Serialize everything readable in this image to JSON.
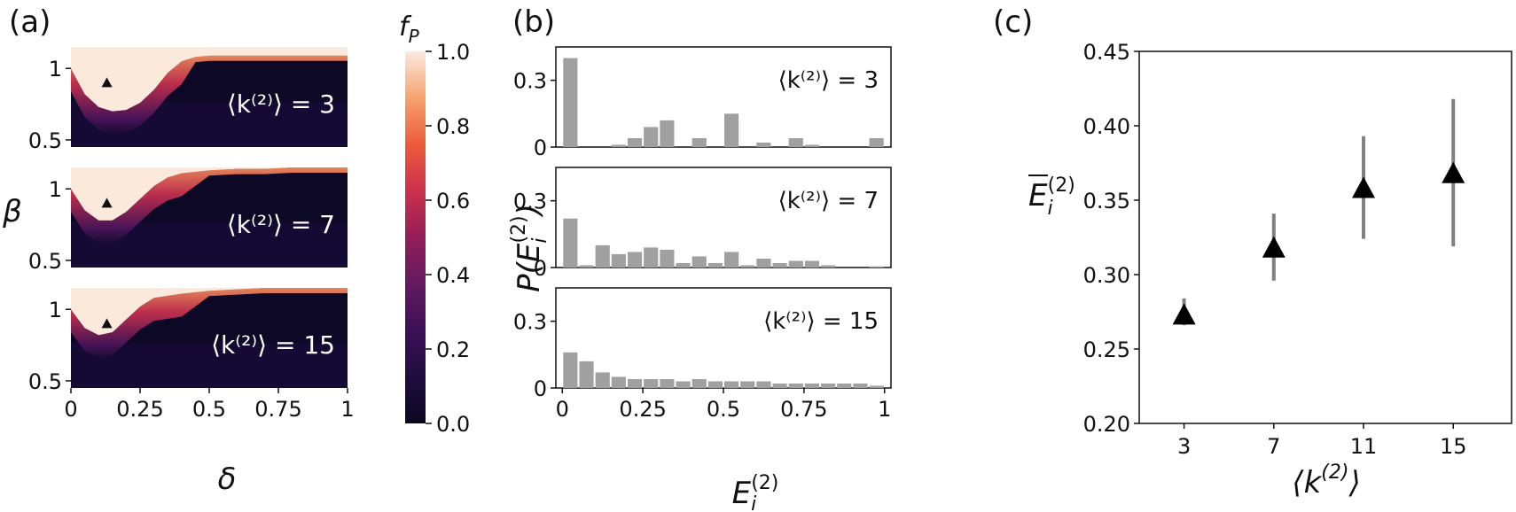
{
  "panels": {
    "a": "(a)",
    "b": "(b)",
    "c": "(c)"
  },
  "chart_data": [
    {
      "type": "heatmap",
      "panel": "(a)",
      "xlabel": "δ",
      "ylabel": "β",
      "xticks": [
        "0",
        "0.25",
        "0.5",
        "0.75",
        "1"
      ],
      "yticks": [
        "0.5",
        "1"
      ],
      "xlim": [
        0,
        1
      ],
      "ylim": [
        0.45,
        1.15
      ],
      "colorbar": {
        "label": "f_P",
        "title_main": "f",
        "title_sub": "P",
        "range": [
          0,
          1
        ],
        "ticks": [
          "0.0",
          "0.2",
          "0.4",
          "0.6",
          "0.8",
          "1.0"
        ]
      },
      "marker": {
        "delta": 0.13,
        "beta": 0.9
      },
      "subplots": [
        {
          "label": "⟨k⁽²⁾⟩ = 3",
          "boundary": [
            [
              0,
              1.0
            ],
            [
              0.05,
              0.82
            ],
            [
              0.1,
              0.73
            ],
            [
              0.15,
              0.7
            ],
            [
              0.2,
              0.71
            ],
            [
              0.25,
              0.76
            ],
            [
              0.3,
              0.85
            ],
            [
              0.35,
              0.97
            ],
            [
              0.4,
              1.05
            ],
            [
              0.45,
              1.08
            ],
            [
              0.5,
              1.09
            ],
            [
              0.6,
              1.09
            ],
            [
              0.7,
              1.09
            ],
            [
              0.8,
              1.09
            ],
            [
              0.9,
              1.09
            ],
            [
              1,
              1.09
            ]
          ]
        },
        {
          "label": "⟨k⁽²⁾⟩ = 7",
          "boundary": [
            [
              0,
              1.0
            ],
            [
              0.05,
              0.85
            ],
            [
              0.1,
              0.78
            ],
            [
              0.15,
              0.78
            ],
            [
              0.2,
              0.84
            ],
            [
              0.25,
              0.93
            ],
            [
              0.3,
              1.02
            ],
            [
              0.35,
              1.08
            ],
            [
              0.4,
              1.11
            ],
            [
              0.5,
              1.13
            ],
            [
              0.6,
              1.14
            ],
            [
              0.7,
              1.14
            ],
            [
              0.8,
              1.15
            ],
            [
              0.9,
              1.15
            ],
            [
              1,
              1.15
            ]
          ]
        },
        {
          "label": "⟨k⁽²⁾⟩ = 15",
          "boundary": [
            [
              0,
              1.0
            ],
            [
              0.05,
              0.87
            ],
            [
              0.1,
              0.82
            ],
            [
              0.15,
              0.84
            ],
            [
              0.2,
              0.93
            ],
            [
              0.25,
              1.02
            ],
            [
              0.3,
              1.08
            ],
            [
              0.4,
              1.11
            ],
            [
              0.5,
              1.13
            ],
            [
              0.6,
              1.14
            ],
            [
              0.7,
              1.15
            ],
            [
              0.8,
              1.15
            ],
            [
              0.9,
              1.15
            ],
            [
              1,
              1.15
            ]
          ]
        }
      ]
    },
    {
      "type": "bar",
      "panel": "(b)",
      "xlabel": "E_i^(2)",
      "ylabel": "P(E_i^(2))",
      "xticks": [
        "0",
        "0.25",
        "0.5",
        "0.75",
        "1"
      ],
      "yticks": [
        "0",
        "0.3"
      ],
      "xlim": [
        -0.02,
        1.02
      ],
      "ylim": [
        0,
        0.45
      ],
      "bin_width": 0.05,
      "bin_starts": [
        0,
        0.05,
        0.1,
        0.15,
        0.2,
        0.25,
        0.3,
        0.35,
        0.4,
        0.45,
        0.5,
        0.55,
        0.6,
        0.65,
        0.7,
        0.75,
        0.8,
        0.85,
        0.9,
        0.95
      ],
      "series": [
        {
          "label": "⟨k⁽²⁾⟩ = 3",
          "values": [
            0.4,
            0,
            0,
            0.01,
            0.04,
            0.09,
            0.12,
            0,
            0.04,
            0,
            0.15,
            0,
            0.02,
            0,
            0.04,
            0.01,
            0,
            0,
            0,
            0.04
          ]
        },
        {
          "label": "⟨k⁽²⁾⟩ = 7",
          "values": [
            0.22,
            0.01,
            0.1,
            0.06,
            0.07,
            0.09,
            0.08,
            0.02,
            0.05,
            0.02,
            0.07,
            0.01,
            0.04,
            0.02,
            0.03,
            0.03,
            0.01,
            0,
            0,
            0.005
          ]
        },
        {
          "label": "⟨k⁽²⁾⟩ = 15",
          "values": [
            0.16,
            0.12,
            0.07,
            0.05,
            0.04,
            0.04,
            0.04,
            0.03,
            0.04,
            0.03,
            0.03,
            0.03,
            0.03,
            0.02,
            0.02,
            0.02,
            0.02,
            0.02,
            0.02,
            0.01
          ]
        }
      ]
    },
    {
      "type": "scatter",
      "panel": "(c)",
      "xlabel": "⟨k⁽²⁾⟩",
      "ylabel": "Ē_i^(2)",
      "xticks": [
        "3",
        "7",
        "11",
        "15"
      ],
      "yticks": [
        "0.20",
        "0.25",
        "0.30",
        "0.35",
        "0.40",
        "0.45"
      ],
      "xlim": [
        1,
        17.6
      ],
      "ylim": [
        0.2,
        0.45
      ],
      "points": [
        {
          "x": 3,
          "y": 0.273,
          "err_low": 0.266,
          "err_high": 0.284
        },
        {
          "x": 7,
          "y": 0.318,
          "err_low": 0.296,
          "err_high": 0.341
        },
        {
          "x": 11,
          "y": 0.358,
          "err_low": 0.324,
          "err_high": 0.393
        },
        {
          "x": 15,
          "y": 0.368,
          "err_low": 0.319,
          "err_high": 0.418
        }
      ],
      "marker_color": "#000000",
      "errorbar_color": "#808080"
    }
  ]
}
